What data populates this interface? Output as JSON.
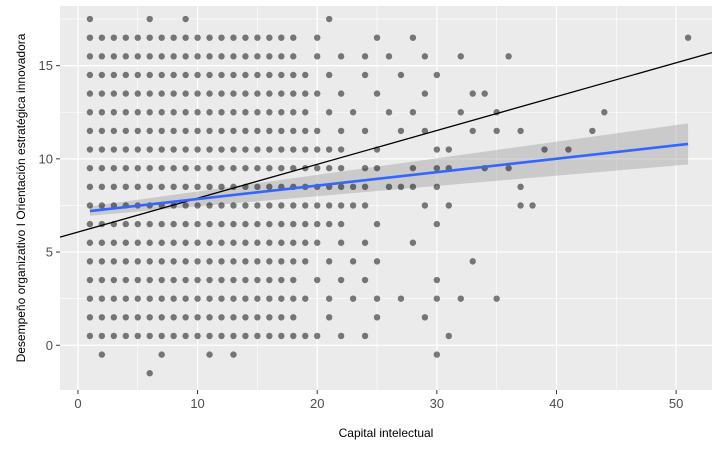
{
  "chart_data": {
    "type": "scatter",
    "title": "",
    "xlabel": "Capital intelectual",
    "ylabel": "Desempeño organizativo I Orientación estratégica innovadora",
    "xlim": [
      -1.5,
      53
    ],
    "ylim": [
      -2.4,
      18.2
    ],
    "x_ticks": [
      0,
      10,
      20,
      30,
      40,
      50
    ],
    "y_ticks": [
      0,
      5,
      10,
      15
    ],
    "grid": true,
    "background": "#ebebeb",
    "grid_color": "#ffffff",
    "series": [
      {
        "type": "scatter",
        "color": "#000000",
        "opacity": 0.5,
        "grid_block": {
          "x_start": 1,
          "x_end": 18,
          "x_step": 1,
          "y_start": 0.5,
          "y_end": 16.5,
          "y_step": 1
        },
        "points": [
          [
            1,
            17.5
          ],
          [
            6,
            17.5
          ],
          [
            9,
            17.5
          ],
          [
            21,
            17.5
          ],
          [
            2,
            -0.5
          ],
          [
            7,
            -0.5
          ],
          [
            11,
            -0.5
          ],
          [
            13,
            -0.5
          ],
          [
            30,
            -0.5
          ],
          [
            6,
            -1.5
          ],
          [
            19,
            0.5
          ],
          [
            20,
            0.5
          ],
          [
            22,
            0.5
          ],
          [
            24,
            0.5
          ],
          [
            31,
            0.5
          ],
          [
            21,
            1.5
          ],
          [
            25,
            1.5
          ],
          [
            29,
            1.5
          ],
          [
            19,
            2.5
          ],
          [
            21,
            2.5
          ],
          [
            23,
            2.5
          ],
          [
            25,
            2.5
          ],
          [
            27,
            2.5
          ],
          [
            30,
            2.5
          ],
          [
            32,
            2.5
          ],
          [
            35,
            2.5
          ],
          [
            20,
            3.5
          ],
          [
            22,
            3.5
          ],
          [
            24,
            3.5
          ],
          [
            30,
            3.5
          ],
          [
            19,
            4.5
          ],
          [
            21,
            4.5
          ],
          [
            23,
            4.5
          ],
          [
            25,
            4.5
          ],
          [
            33,
            4.5
          ],
          [
            19,
            5.5
          ],
          [
            20,
            5.5
          ],
          [
            22,
            5.5
          ],
          [
            24,
            5.5
          ],
          [
            28,
            5.5
          ],
          [
            19,
            6.5
          ],
          [
            20,
            6.5
          ],
          [
            21,
            6.5
          ],
          [
            22,
            6.5
          ],
          [
            25,
            6.5
          ],
          [
            30,
            6.5
          ],
          [
            19,
            7.5
          ],
          [
            20,
            7.5
          ],
          [
            21,
            7.5
          ],
          [
            22,
            7.5
          ],
          [
            23,
            7.5
          ],
          [
            24,
            7.5
          ],
          [
            29,
            7.5
          ],
          [
            31,
            7.5
          ],
          [
            37,
            7.5
          ],
          [
            38,
            7.5
          ],
          [
            19,
            8.5
          ],
          [
            20,
            8.5
          ],
          [
            21,
            8.5
          ],
          [
            22,
            8.5
          ],
          [
            23,
            8.5
          ],
          [
            24,
            8.5
          ],
          [
            26,
            8.5
          ],
          [
            27,
            8.5
          ],
          [
            28,
            8.5
          ],
          [
            30,
            8.5
          ],
          [
            37,
            8.5
          ],
          [
            19,
            9.5
          ],
          [
            20,
            9.5
          ],
          [
            21,
            9.5
          ],
          [
            22,
            9.5
          ],
          [
            24,
            9.5
          ],
          [
            25,
            9.5
          ],
          [
            28,
            9.5
          ],
          [
            30,
            9.5
          ],
          [
            31,
            9.5
          ],
          [
            34,
            9.5
          ],
          [
            36,
            9.5
          ],
          [
            19,
            10.5
          ],
          [
            20,
            10.5
          ],
          [
            21,
            10.5
          ],
          [
            22,
            10.5
          ],
          [
            25,
            10.5
          ],
          [
            30,
            10.5
          ],
          [
            31,
            10.5
          ],
          [
            39,
            10.5
          ],
          [
            41,
            10.5
          ],
          [
            19,
            11.5
          ],
          [
            20,
            11.5
          ],
          [
            22,
            11.5
          ],
          [
            24,
            11.5
          ],
          [
            27,
            11.5
          ],
          [
            29,
            11.5
          ],
          [
            33,
            11.5
          ],
          [
            35,
            11.5
          ],
          [
            37,
            11.5
          ],
          [
            43,
            11.5
          ],
          [
            19,
            12.5
          ],
          [
            21,
            12.5
          ],
          [
            23,
            12.5
          ],
          [
            26,
            12.5
          ],
          [
            28,
            12.5
          ],
          [
            32,
            12.5
          ],
          [
            35,
            12.5
          ],
          [
            44,
            12.5
          ],
          [
            19,
            13.5
          ],
          [
            20,
            13.5
          ],
          [
            22,
            13.5
          ],
          [
            25,
            13.5
          ],
          [
            29,
            13.5
          ],
          [
            33,
            13.5
          ],
          [
            34,
            13.5
          ],
          [
            19,
            14.5
          ],
          [
            21,
            14.5
          ],
          [
            24,
            14.5
          ],
          [
            27,
            14.5
          ],
          [
            30,
            14.5
          ],
          [
            20,
            15.5
          ],
          [
            22,
            15.5
          ],
          [
            24,
            15.5
          ],
          [
            26,
            15.5
          ],
          [
            29,
            15.5
          ],
          [
            32,
            15.5
          ],
          [
            36,
            15.5
          ],
          [
            20,
            16.5
          ],
          [
            25,
            16.5
          ],
          [
            28,
            16.5
          ],
          [
            51,
            16.5
          ]
        ]
      },
      {
        "type": "line",
        "color": "#000000",
        "x": [
          -1.5,
          53
        ],
        "y": [
          5.8,
          15.7
        ]
      },
      {
        "type": "smooth",
        "color": "#3366ff",
        "band_color": "#999999",
        "x": [
          1,
          51
        ],
        "y": [
          7.2,
          10.8
        ],
        "lower": [
          6.95,
          9.7
        ],
        "upper": [
          7.45,
          11.9
        ]
      }
    ]
  }
}
